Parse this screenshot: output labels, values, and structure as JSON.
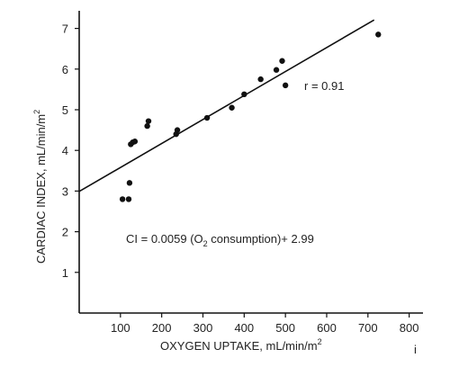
{
  "chart_data": {
    "type": "scatter",
    "xlabel_main": "OXYGEN UPTAKE, mL/min/m",
    "xlabel_sup": "2",
    "ylabel_main": "CARDIAC INDEX, mL/min/m",
    "ylabel_sup": "2",
    "xlim": [
      0,
      850
    ],
    "ylim": [
      0,
      7.5
    ],
    "xticks": [
      "100",
      "200",
      "300",
      "400",
      "500",
      "600",
      "700",
      "800"
    ],
    "xtick_values": [
      100,
      200,
      300,
      400,
      500,
      600,
      700,
      800
    ],
    "yticks": [
      "1",
      "2",
      "3",
      "4",
      "5",
      "6",
      "7"
    ],
    "ytick_values": [
      1,
      2,
      3,
      4,
      5,
      6,
      7
    ],
    "grid": false,
    "series": [
      {
        "x": [
          105,
          120,
          122,
          125,
          130,
          135,
          165,
          168,
          235,
          238,
          310,
          370,
          400,
          440,
          478,
          492,
          500,
          725
        ],
        "y": [
          2.8,
          2.8,
          3.2,
          4.15,
          4.2,
          4.22,
          4.6,
          4.72,
          4.4,
          4.5,
          4.8,
          5.05,
          5.38,
          5.75,
          5.98,
          6.2,
          5.6,
          6.85
        ]
      }
    ],
    "fit_line": {
      "slope": 0.0059,
      "intercept": 2.99,
      "x_range": [
        0,
        715
      ]
    },
    "annotations": {
      "r_value": "r = 0.91",
      "equation_prefix": "CI = 0.0059 (O",
      "equation_sub": "2",
      "equation_suffix": " consumption)+ 2.99"
    },
    "corner_mark": "i"
  }
}
